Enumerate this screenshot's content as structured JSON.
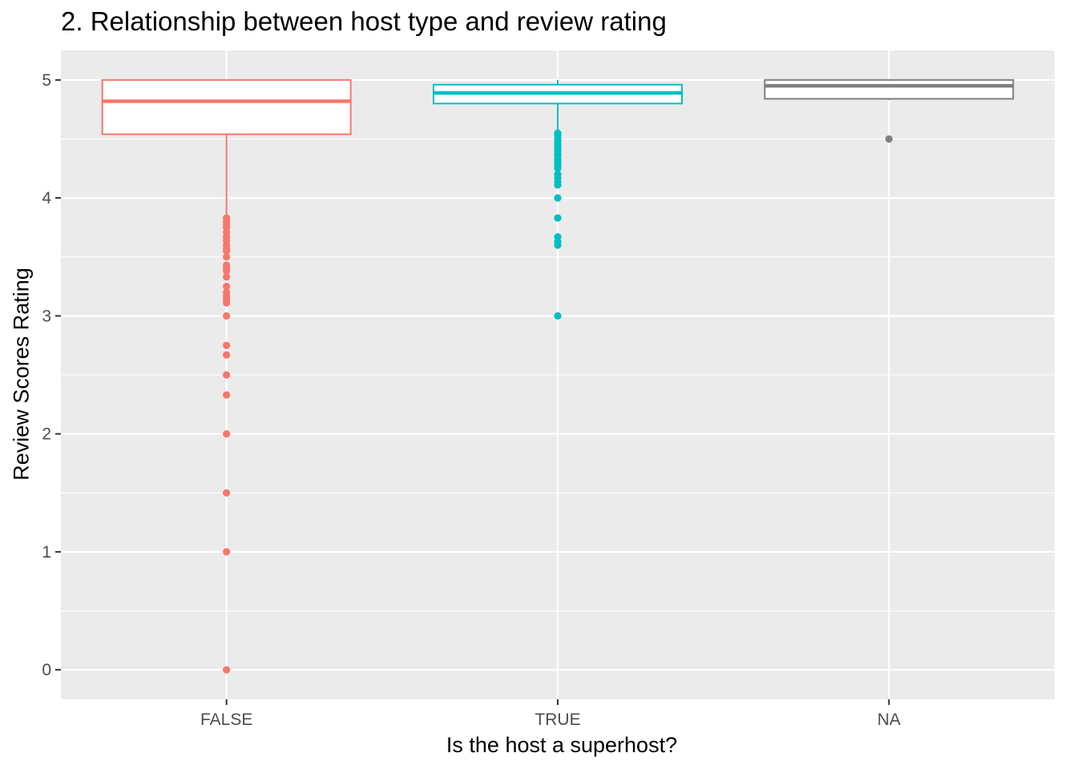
{
  "chart_data": {
    "type": "boxplot",
    "title": "2. Relationship between host type and review rating",
    "xlabel": "Is the host a superhost?",
    "ylabel": "Review Scores Rating",
    "ylim": [
      -0.25,
      5.25
    ],
    "yticks": [
      0,
      1,
      2,
      3,
      4,
      5
    ],
    "ytick_labels": [
      "0",
      "1",
      "2",
      "3",
      "4",
      "5"
    ],
    "categories": [
      "FALSE",
      "TRUE",
      "NA"
    ],
    "grid": true,
    "legend": "none",
    "series": [
      {
        "category": "FALSE",
        "color": "#F8766D",
        "lower_whisker": 3.85,
        "q1": 4.54,
        "median": 4.82,
        "q3": 5.0,
        "upper_whisker": 5.0,
        "outliers": [
          3.83,
          3.8,
          3.78,
          3.75,
          3.71,
          3.67,
          3.64,
          3.6,
          3.57,
          3.55,
          3.5,
          3.43,
          3.4,
          3.38,
          3.33,
          3.25,
          3.2,
          3.17,
          3.14,
          3.11,
          3.0,
          2.75,
          2.67,
          2.5,
          2.33,
          2.0,
          1.5,
          1.0,
          0.0
        ]
      },
      {
        "category": "TRUE",
        "color": "#00BFC4",
        "lower_whisker": 4.57,
        "q1": 4.8,
        "median": 4.89,
        "q3": 4.96,
        "upper_whisker": 5.0,
        "outliers": [
          4.55,
          4.53,
          4.5,
          4.48,
          4.46,
          4.44,
          4.42,
          4.4,
          4.38,
          4.36,
          4.33,
          4.31,
          4.29,
          4.27,
          4.25,
          4.2,
          4.17,
          4.14,
          4.11,
          4.0,
          3.83,
          3.67,
          3.63,
          3.6,
          3.0
        ]
      },
      {
        "category": "NA",
        "color": "#7F7F7F",
        "lower_whisker": 4.83,
        "q1": 4.84,
        "median": 4.95,
        "q3": 5.0,
        "upper_whisker": 5.0,
        "outliers": [
          4.5
        ]
      }
    ]
  }
}
